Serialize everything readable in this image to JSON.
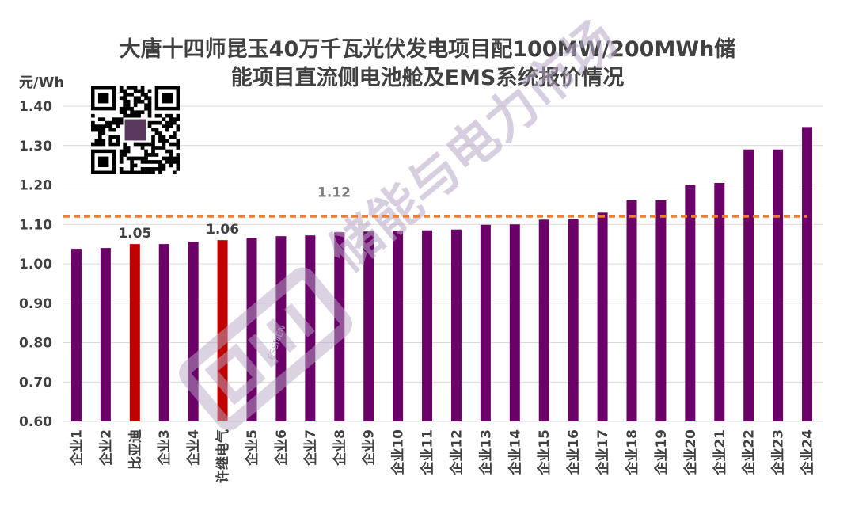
{
  "chart_data": {
    "type": "bar",
    "title_line1": "大唐十四师昆玉40万千瓦光伏发电项目配100MW/200MWh储",
    "title_line2": "能项目直流侧电池舱及EMS系统报价情况",
    "unit": "元/Wh",
    "categories": [
      "企业1",
      "企业2",
      "比亚迪",
      "企业3",
      "企业4",
      "许继电气",
      "企业5",
      "企业6",
      "企业7",
      "企业8",
      "企业9",
      "企业10",
      "企业11",
      "企业12",
      "企业13",
      "企业14",
      "企业15",
      "企业16",
      "企业17",
      "企业18",
      "企业19",
      "企业20",
      "企业21",
      "企业22",
      "企业23",
      "企业24"
    ],
    "values": [
      1.038,
      1.04,
      1.05,
      1.05,
      1.056,
      1.06,
      1.065,
      1.07,
      1.072,
      1.08,
      1.082,
      1.084,
      1.085,
      1.087,
      1.099,
      1.1,
      1.112,
      1.113,
      1.13,
      1.161,
      1.161,
      1.199,
      1.205,
      1.29,
      1.29,
      1.347
    ],
    "highlight_labels": [
      "1.05",
      "1.06"
    ],
    "average": 1.12,
    "average_label": "1.12",
    "y_ticks": [
      "0.60",
      "0.70",
      "0.80",
      "0.90",
      "1.00",
      "1.10",
      "1.20",
      "1.30",
      "1.40"
    ],
    "ylim": [
      0.6,
      1.4
    ],
    "colors": {
      "bar": "#6b0068",
      "highlight": "#c00000",
      "average_line": "#ed7d31",
      "grid": "#d9d9d9"
    },
    "highlighted_categories": [
      "比亚迪",
      "许继电气"
    ],
    "watermark": "储能与电力市场",
    "watermark_sub": "ESSMEN",
    "grid": true,
    "legend": "none"
  }
}
